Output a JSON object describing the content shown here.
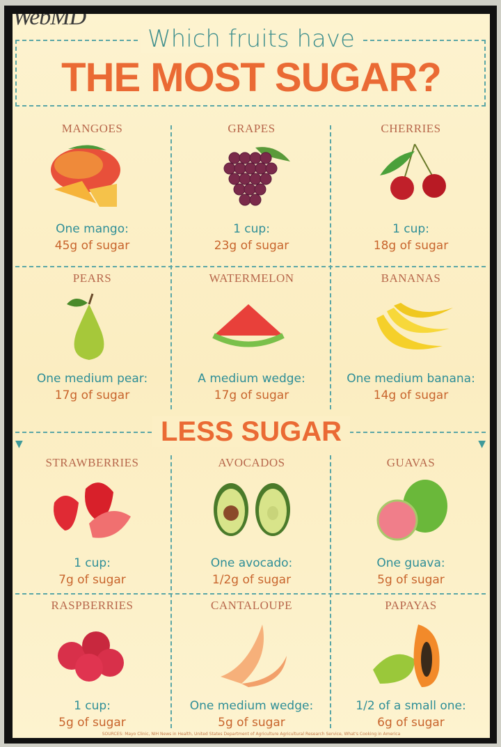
{
  "logo": "WebMD",
  "subtitle": "Which fruits have",
  "title": "THE MOST SUGAR?",
  "divider_label": "LESS SUGAR",
  "sources": "SOURCES: Mayo Clinic, NIH News in Health, United States Department of Agriculture Agricultural Research Service, What's Cooking in America",
  "colors": {
    "teal": "#2e8e97",
    "orange": "#ea6a34",
    "name": "#b7664a",
    "background": "#fdf3cf"
  },
  "fruits": [
    {
      "name": "MANGOES",
      "icon": "mango-icon",
      "serving": "One mango:",
      "sugar": "45g of sugar"
    },
    {
      "name": "GRAPES",
      "icon": "grapes-icon",
      "serving": "1 cup:",
      "sugar": "23g of sugar"
    },
    {
      "name": "CHERRIES",
      "icon": "cherries-icon",
      "serving": "1 cup:",
      "sugar": "18g of sugar"
    },
    {
      "name": "PEARS",
      "icon": "pear-icon",
      "serving": "One medium pear:",
      "sugar": "17g of sugar"
    },
    {
      "name": "WATERMELON",
      "icon": "watermelon-icon",
      "serving": "A medium wedge:",
      "sugar": "17g of sugar"
    },
    {
      "name": "BANANAS",
      "icon": "bananas-icon",
      "serving": "One medium banana:",
      "sugar": "14g of sugar"
    },
    {
      "name": "STRAWBERRIES",
      "icon": "strawberries-icon",
      "serving": "1 cup:",
      "sugar": "7g of sugar"
    },
    {
      "name": "AVOCADOS",
      "icon": "avocado-icon",
      "serving": "One avocado:",
      "sugar": "1/2g of sugar"
    },
    {
      "name": "GUAVAS",
      "icon": "guava-icon",
      "serving": "One guava:",
      "sugar": "5g of sugar"
    },
    {
      "name": "RASPBERRIES",
      "icon": "raspberries-icon",
      "serving": "1 cup:",
      "sugar": "5g of sugar"
    },
    {
      "name": "CANTALOUPE",
      "icon": "cantaloupe-icon",
      "serving": "One medium wedge:",
      "sugar": "5g of sugar"
    },
    {
      "name": "PAPAYAS",
      "icon": "papaya-icon",
      "serving": "1/2 of a small one:",
      "sugar": "6g of sugar"
    }
  ]
}
